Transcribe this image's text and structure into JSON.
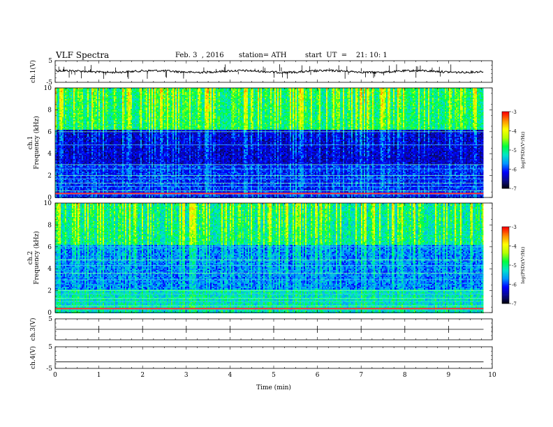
{
  "header": {
    "title": "VLF Spectra",
    "date": "Feb. 3  , 2016",
    "station": "station= ATH",
    "start": "start  UT  =    21: 10: 1"
  },
  "chart_data": [
    {
      "type": "line",
      "name": "channel-1-waveform",
      "ylabel": "ch.1(V)",
      "ylim": [
        -5,
        5
      ],
      "yticks": [
        "5",
        "-5"
      ],
      "xlim": [
        0,
        10
      ],
      "baseline": 0,
      "trace_end": 9.8
    },
    {
      "type": "heatmap",
      "name": "channel-1-spectrogram",
      "ylabel": "ch.1\nFrequency (kHz)",
      "ylim": [
        0,
        10
      ],
      "yticks": [
        "0",
        "2",
        "4",
        "6",
        "8",
        "10"
      ],
      "xlim": [
        0,
        10
      ],
      "trace_end": 9.8,
      "colorbar": {
        "label": "log(PSD)(V²/Hz)",
        "range": [
          -7,
          -3
        ],
        "ticks": [
          "-3",
          "-4",
          "-5",
          "-6",
          "-7"
        ]
      },
      "spectral_lines_khz": [
        0.3,
        0.6,
        1.0,
        1.3,
        1.7,
        2.0,
        2.6,
        3.0,
        4.8,
        6.0
      ]
    },
    {
      "type": "heatmap",
      "name": "channel-2-spectrogram",
      "ylabel": "ch.2\nFrequency (kHz)",
      "ylim": [
        0,
        10
      ],
      "yticks": [
        "0",
        "2",
        "4",
        "6",
        "8",
        "10"
      ],
      "xlim": [
        0,
        10
      ],
      "trace_end": 9.8,
      "colorbar": {
        "label": "log(PSD)(V²/Hz)",
        "range": [
          -7,
          -3
        ],
        "ticks": [
          "-3",
          "-4",
          "-5",
          "-6",
          "-7"
        ]
      },
      "spectral_lines_khz": [
        0.3,
        0.6,
        1.0,
        1.3,
        1.7,
        2.0,
        3.0,
        3.6,
        4.3,
        4.8,
        6.0
      ]
    },
    {
      "type": "line",
      "name": "channel-3-waveform",
      "ylabel": "ch.3(V)",
      "ylim": [
        -5,
        5
      ],
      "yticks": [
        "5"
      ],
      "xlim": [
        0,
        10
      ],
      "baseline": 0,
      "trace_end": 9.8
    },
    {
      "type": "line",
      "name": "channel-4-waveform",
      "ylabel": "ch.4(V)",
      "ylim": [
        -5,
        5
      ],
      "yticks": [
        "5",
        "-5"
      ],
      "xlim": [
        0,
        10
      ],
      "baseline": -2,
      "trace_end": 9.8
    }
  ],
  "xaxis": {
    "label": "Time  (min)",
    "ticks": [
      "0",
      "1",
      "2",
      "3",
      "4",
      "5",
      "6",
      "7",
      "8",
      "9",
      "10"
    ]
  },
  "colors": {
    "colormap": [
      "#000000",
      "#0a0a8a",
      "#0000ff",
      "#0096ff",
      "#00e6c8",
      "#00ff3c",
      "#b4ff00",
      "#ffff00",
      "#ff8c00",
      "#ff0000",
      "#ffffff"
    ]
  }
}
